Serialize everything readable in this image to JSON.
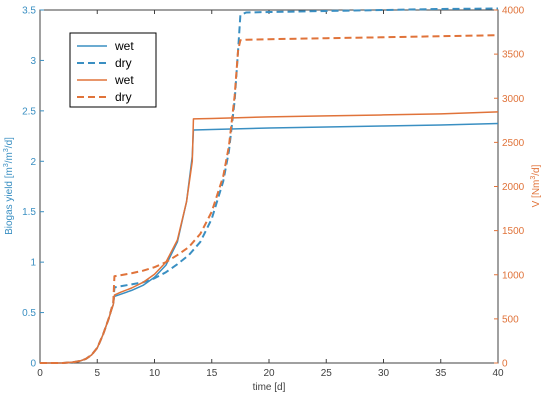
{
  "chart_data": {
    "type": "line",
    "colors": {
      "left": "#3a8fc2",
      "right": "#e0733a"
    },
    "x_axis": {
      "label": "time [d]",
      "lim": [
        0,
        40
      ],
      "ticks": [
        0,
        5,
        10,
        15,
        20,
        25,
        30,
        35,
        40
      ],
      "tick_labels": [
        "0",
        "5",
        "10",
        "15",
        "20",
        "25",
        "30",
        "35",
        "40"
      ]
    },
    "y_left": {
      "label_main": "Biogas yield [m",
      "label_sup1": "3",
      "label_mid": "/m",
      "label_sup2": "3",
      "label_end": "/d]",
      "lim": [
        0,
        3.5
      ],
      "ticks": [
        0,
        0.5,
        1,
        1.5,
        2,
        2.5,
        3,
        3.5
      ],
      "tick_labels": [
        "0",
        "0.5",
        "1",
        "1.5",
        "2",
        "2.5",
        "3",
        "3.5"
      ]
    },
    "y_right": {
      "label_main": "V [Nm",
      "label_sup": "3",
      "label_end": "/d]",
      "lim": [
        0,
        4000
      ],
      "ticks": [
        0,
        500,
        1000,
        1500,
        2000,
        2500,
        3000,
        3500,
        4000
      ],
      "tick_labels": [
        "0",
        "500",
        "1000",
        "1500",
        "2000",
        "2500",
        "3000",
        "3500",
        "4000"
      ]
    },
    "legend": {
      "position": "top-left",
      "entries": [
        {
          "label": "wet",
          "color": "#3a8fc2",
          "dash": false
        },
        {
          "label": "dry",
          "color": "#3a8fc2",
          "dash": true
        },
        {
          "label": "wet",
          "color": "#e0733a",
          "dash": false
        },
        {
          "label": "dry",
          "color": "#e0733a",
          "dash": true
        }
      ]
    },
    "series": [
      {
        "axis": "left",
        "color": "#3a8fc2",
        "dash": false,
        "x": [
          0,
          2,
          3,
          3.5,
          4,
          4.5,
          5,
          5.5,
          6,
          6.4,
          6.5,
          7,
          8,
          9,
          10,
          11,
          12,
          12.8,
          13.3,
          13.4,
          15,
          20,
          25,
          30,
          35,
          40
        ],
        "y": [
          0,
          0,
          0.01,
          0.02,
          0.04,
          0.08,
          0.15,
          0.28,
          0.44,
          0.58,
          0.66,
          0.68,
          0.72,
          0.77,
          0.85,
          0.97,
          1.2,
          1.6,
          2.05,
          2.31,
          2.315,
          2.33,
          2.34,
          2.35,
          2.36,
          2.375
        ]
      },
      {
        "axis": "left",
        "color": "#3a8fc2",
        "dash": true,
        "x": [
          0,
          2,
          3,
          3.5,
          4,
          4.5,
          5,
          5.5,
          6,
          6.4,
          6.5,
          7,
          8,
          9,
          10,
          11,
          12,
          13,
          14,
          15,
          16,
          16.5,
          17,
          17.3,
          17.5,
          18,
          20,
          25,
          30,
          35,
          40
        ],
        "y": [
          0,
          0,
          0.01,
          0.02,
          0.04,
          0.08,
          0.15,
          0.28,
          0.44,
          0.6,
          0.75,
          0.76,
          0.78,
          0.8,
          0.84,
          0.9,
          0.98,
          1.07,
          1.2,
          1.43,
          1.8,
          2.1,
          2.6,
          3.1,
          3.45,
          3.475,
          3.48,
          3.49,
          3.5,
          3.51,
          3.515
        ]
      },
      {
        "axis": "right",
        "color": "#e0733a",
        "dash": false,
        "x": [
          0,
          2,
          3,
          3.5,
          4,
          4.5,
          5,
          5.5,
          6,
          6.4,
          6.5,
          7,
          8,
          9,
          10,
          11,
          12,
          12.8,
          13.3,
          13.4,
          15,
          20,
          25,
          30,
          35,
          40
        ],
        "y": [
          0,
          0,
          11,
          23,
          46,
          91,
          171,
          320,
          503,
          663,
          770,
          800,
          850,
          914,
          1006,
          1143,
          1394,
          1829,
          2286,
          2766,
          2771,
          2789,
          2800,
          2811,
          2823,
          2846
        ]
      },
      {
        "axis": "right",
        "color": "#e0733a",
        "dash": true,
        "x": [
          0,
          2,
          3,
          3.5,
          4,
          4.5,
          5,
          5.5,
          6,
          6.4,
          6.5,
          7,
          8,
          9,
          10,
          11,
          12,
          13,
          14,
          15,
          16,
          16.5,
          17,
          17.3,
          17.5,
          18,
          20,
          25,
          30,
          35,
          40
        ],
        "y": [
          0,
          0,
          11,
          23,
          46,
          91,
          171,
          320,
          503,
          686,
          983,
          994,
          1017,
          1046,
          1086,
          1143,
          1223,
          1314,
          1463,
          1714,
          2114,
          2457,
          3029,
          3543,
          3657,
          3663,
          3669,
          3680,
          3691,
          3703,
          3714
        ]
      }
    ]
  }
}
